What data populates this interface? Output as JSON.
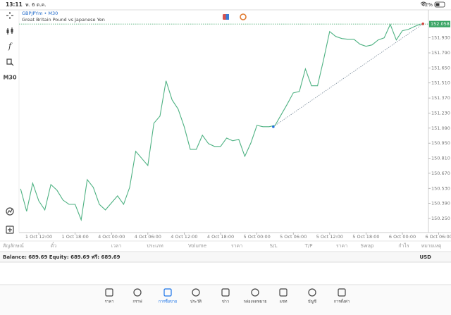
{
  "status_bar": {
    "time": "13:11",
    "date": "พ. 6 ต.ค.",
    "battery": "42%"
  },
  "chart_data": {
    "type": "line",
    "symbol": "GBPJPYm • M30",
    "description": "Great Britain Pound vs Japanese Yen",
    "timeframe": "M30",
    "color": "#4fb283",
    "x": [
      -3,
      -2,
      -1,
      0,
      1,
      2,
      3,
      4,
      5,
      6,
      7,
      8,
      9,
      10,
      11,
      12,
      13,
      14,
      15,
      16,
      17,
      18,
      19,
      20,
      21,
      22,
      23,
      24,
      25,
      26,
      27,
      28,
      29,
      30,
      31,
      32,
      33,
      34,
      35,
      36,
      37,
      38,
      39,
      40,
      41,
      42,
      43,
      44,
      45,
      46,
      47,
      48,
      49,
      50,
      51,
      52,
      53,
      54,
      55,
      56,
      57,
      58,
      59,
      60,
      61,
      62,
      63
    ],
    "values": [
      150.526,
      150.316,
      150.578,
      150.414,
      150.329,
      150.565,
      150.513,
      150.421,
      150.381,
      150.381,
      150.237,
      150.611,
      150.539,
      150.381,
      150.329,
      150.395,
      150.46,
      150.381,
      150.539,
      150.874,
      150.808,
      150.742,
      151.136,
      151.202,
      151.53,
      151.353,
      151.267,
      151.103,
      150.893,
      150.893,
      151.024,
      150.946,
      150.92,
      150.92,
      150.998,
      150.972,
      150.985,
      150.828,
      150.952,
      151.116,
      151.103,
      151.103,
      151.116,
      151.215,
      151.313,
      151.418,
      151.431,
      151.641,
      151.484,
      151.484,
      151.727,
      151.989,
      151.943,
      151.923,
      151.917,
      151.917,
      151.871,
      151.851,
      151.864,
      151.91,
      151.93,
      152.055,
      151.91,
      151.996,
      152.009,
      152.035,
      152.058
    ],
    "xlim": [
      -6.4,
      64.3
    ],
    "ylim": [
      150.145,
      152.19
    ],
    "xticks": [
      {
        "value": 0,
        "label": "1 Oct 12:00"
      },
      {
        "value": 6,
        "label": "1 Oct 18:00"
      },
      {
        "value": 12,
        "label": "4 Oct 00:00"
      },
      {
        "value": 18,
        "label": "4 Oct 06:00"
      },
      {
        "value": 24,
        "label": "4 Oct 12:00"
      },
      {
        "value": 30,
        "label": "4 Oct 18:00"
      },
      {
        "value": 36,
        "label": "5 Oct 00:00"
      },
      {
        "value": 42,
        "label": "5 Oct 06:00"
      },
      {
        "value": 48,
        "label": "5 Oct 12:00"
      },
      {
        "value": 54,
        "label": "5 Oct 18:00"
      },
      {
        "value": 60,
        "label": "6 Oct 00:00"
      },
      {
        "value": 66,
        "label": "6 Oct 06:00"
      }
    ],
    "yticks": [
      {
        "value": 150.25,
        "label": "150.250"
      },
      {
        "value": 150.39,
        "label": "150.390"
      },
      {
        "value": 150.53,
        "label": "150.530"
      },
      {
        "value": 150.67,
        "label": "150.670"
      },
      {
        "value": 150.81,
        "label": "150.810"
      },
      {
        "value": 150.95,
        "label": "150.950"
      },
      {
        "value": 151.09,
        "label": "151.090"
      },
      {
        "value": 151.23,
        "label": "151.230"
      },
      {
        "value": 151.37,
        "label": "151.370"
      },
      {
        "value": 151.51,
        "label": "151.510"
      },
      {
        "value": 151.65,
        "label": "151.650"
      },
      {
        "value": 151.79,
        "label": "151.790"
      },
      {
        "value": 151.93,
        "label": "151.930"
      }
    ],
    "current_price": {
      "value": 152.058,
      "label": "152.058"
    },
    "trendline": {
      "x": [
        38.7,
        63.4
      ],
      "y": [
        151.103,
        152.06
      ]
    }
  },
  "trade_table": {
    "columns": [
      "สัญลักษณ์",
      "ตั๋ว",
      "เวลา",
      "ประเภท",
      "Volume",
      "ราคา",
      "S/L",
      "T/P",
      "ราคา",
      "Swap",
      "กำไร",
      "หมายเหตุ"
    ]
  },
  "account": {
    "summary": "Balance: 689.69 Equity: 689.69 ฟรี: 689.69",
    "currency": "USD"
  },
  "nav": {
    "items": [
      "ราคา",
      "กราฟ",
      "การซื้อขาย",
      "ประวัติ",
      "ข่าว",
      "กล่องจดหมาย",
      "แชท",
      "บัญชี",
      "การตั้งค่า"
    ],
    "active": 2
  }
}
